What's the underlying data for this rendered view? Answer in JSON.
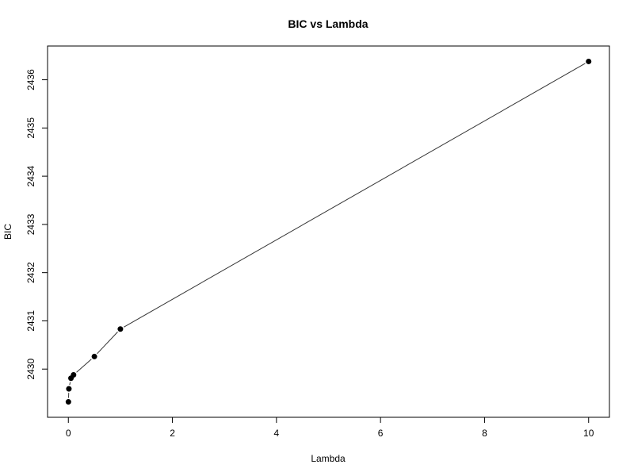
{
  "chart_data": {
    "type": "line",
    "title": "BIC vs Lambda",
    "xlabel": "Lambda",
    "ylabel": "BIC",
    "xlim": [
      -0.4,
      10.4
    ],
    "ylim": [
      2429.0,
      2436.7
    ],
    "xticks": [
      0,
      2,
      4,
      6,
      8,
      10
    ],
    "yticks": [
      2430,
      2431,
      2432,
      2433,
      2434,
      2435,
      2436
    ],
    "grid": false,
    "series": [
      {
        "x": [
          0.001,
          0.01,
          0.05,
          0.1,
          0.5,
          1,
          10
        ],
        "y": [
          2429.32,
          2429.59,
          2429.81,
          2429.88,
          2430.26,
          2430.83,
          2436.38
        ],
        "marker": "filled-circle",
        "line": true,
        "color": "#000000"
      }
    ]
  }
}
